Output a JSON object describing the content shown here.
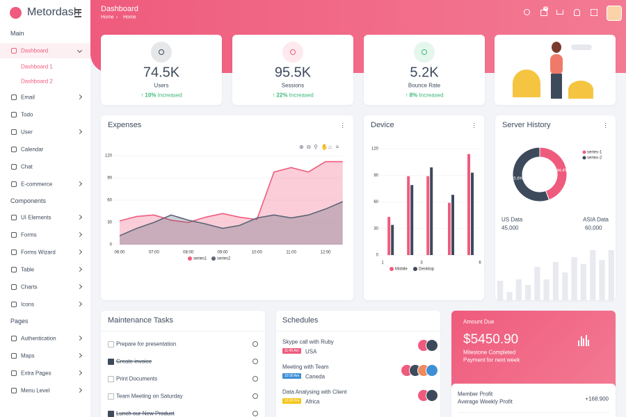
{
  "brand": "Metordash",
  "sidebar": [
    {
      "title": "Main",
      "items": [
        {
          "label": "Dashboard",
          "arrow": "down",
          "active": true,
          "children": [
            "Dashboard 1",
            "Dashboard 2"
          ]
        },
        {
          "label": "Email",
          "arrow": "right"
        },
        {
          "label": "Todo"
        },
        {
          "label": "User",
          "arrow": "right"
        },
        {
          "label": "Calendar"
        },
        {
          "label": "Chat"
        },
        {
          "label": "E-commerce",
          "arrow": "right"
        }
      ]
    },
    {
      "title": "Components",
      "items": [
        {
          "label": "UI Elements",
          "arrow": "right"
        },
        {
          "label": "Forms",
          "arrow": "right"
        },
        {
          "label": "Forms Wizard",
          "arrow": "right"
        },
        {
          "label": "Table",
          "arrow": "right"
        },
        {
          "label": "Charts",
          "arrow": "right"
        },
        {
          "label": "Icons",
          "arrow": "right"
        }
      ]
    },
    {
      "title": "Pages",
      "items": [
        {
          "label": "Authentication",
          "arrow": "right"
        },
        {
          "label": "Maps",
          "arrow": "right"
        },
        {
          "label": "Extra Pages",
          "arrow": "right"
        },
        {
          "label": "Menu Level",
          "arrow": "right"
        }
      ]
    }
  ],
  "header": {
    "title": "Dashboard",
    "breadcrumb": [
      "Home",
      "Home"
    ],
    "mail_badge": 5
  },
  "stats": [
    {
      "value": "74.5K",
      "label": "Users",
      "change": "10%",
      "change_text": "Increased",
      "color": "#3d4a5c"
    },
    {
      "value": "95.5K",
      "label": "Sessions",
      "change": "22%",
      "change_text": "Increased",
      "color": "#ef5b7d"
    },
    {
      "value": "5.2K",
      "label": "Bounce Rate",
      "change": "8%",
      "change_text": "Increased",
      "color": "#3cb878"
    }
  ],
  "chart_data": [
    {
      "type": "area",
      "title": "Expenses",
      "categories": [
        "06:00",
        null,
        "07:00",
        null,
        "08:00",
        null,
        "09:00",
        null,
        "10:00",
        null,
        "11:00",
        null,
        "12:00",
        null
      ],
      "series": [
        {
          "name": "series1",
          "color": "#ef5b7d",
          "values": [
            32,
            38,
            40,
            33,
            30,
            37,
            42,
            37,
            34,
            98,
            104,
            98,
            112,
            112
          ]
        },
        {
          "name": "series2",
          "color": "#5b6476",
          "values": [
            12,
            22,
            30,
            40,
            33,
            28,
            22,
            26,
            36,
            40,
            36,
            40,
            48,
            58
          ]
        }
      ],
      "ylim": [
        0,
        120
      ],
      "yticks": [
        0,
        30,
        60,
        90,
        120
      ],
      "legend": "bottom"
    },
    {
      "type": "bar",
      "title": "Device",
      "x": [
        1.4,
        2.4,
        3.4,
        4.5,
        5.5
      ],
      "xlim": [
        1,
        6
      ],
      "xticks": [
        1,
        3,
        6
      ],
      "series": [
        {
          "name": "Mobile",
          "color": "#ef5b7d",
          "values": [
            43,
            89,
            89,
            59,
            114
          ]
        },
        {
          "name": "Desktop",
          "color": "#3d4a5c",
          "values": [
            34,
            79,
            99,
            68,
            93
          ]
        }
      ],
      "ylim": [
        0,
        120
      ],
      "yticks": [
        0,
        30,
        60,
        90,
        120
      ],
      "legend": "bottom"
    },
    {
      "type": "donut",
      "title": "Server History",
      "series": [
        {
          "name": "series-1",
          "color": "#ef5b7d"
        },
        {
          "name": "series-2",
          "color": "#3d4a5c"
        }
      ],
      "values": [
        44.4,
        55.6
      ],
      "value_labels": [
        "44.4%",
        "55.6%"
      ],
      "legend": "top-right"
    }
  ],
  "server_totals": [
    {
      "label": "US Data",
      "value": "45,000"
    },
    {
      "label": "ASIA Data",
      "value": "60,000"
    }
  ],
  "server_background_bars": [
    28,
    12,
    30,
    22,
    48,
    30,
    55,
    40,
    62,
    52,
    72,
    58,
    72
  ],
  "tasks": {
    "title": "Maintenance Tasks",
    "items": [
      {
        "text": "Prepare for presentation",
        "done": false
      },
      {
        "text": "Create invoice",
        "done": true
      },
      {
        "text": "Print Documents",
        "done": false
      },
      {
        "text": "Team Meeting on Saturday",
        "done": false
      },
      {
        "text": "Lunch our New Product",
        "done": true
      }
    ]
  },
  "schedules": {
    "title": "Schedules",
    "items": [
      {
        "title": "Skype call with Ruby",
        "time": "11:45 Am",
        "place": "USA",
        "color": "#ef5b7d",
        "avatars": 2
      },
      {
        "title": "Meeting with Team",
        "time": "10:30 Am",
        "place": "Caneda",
        "color": "#3f8fd6",
        "avatars": 4
      },
      {
        "title": "Data Analysing with Client",
        "time": "12:00 Pm",
        "place": "Africa",
        "color": "#f5c518",
        "avatars": 2
      }
    ]
  },
  "amount_due": {
    "title": "Amount Due",
    "amount": "$5450.90",
    "line1": "Milestone Completed",
    "line2": "Payment for next week"
  },
  "member_profit": {
    "title": "Member Profit",
    "subtitle": "Average Weekly Profit",
    "value": "+168.900"
  }
}
